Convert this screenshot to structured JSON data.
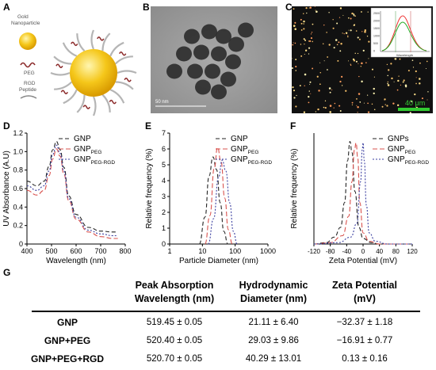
{
  "panel_labels": [
    "A",
    "B",
    "C",
    "D",
    "E",
    "F",
    "G"
  ],
  "panel_a": {
    "labels": {
      "gold": "Gold\nNanoparticle",
      "peg": "PEG",
      "rgd": "RGD\nPeptide"
    }
  },
  "panel_b": {
    "scale_bar": "50 nm"
  },
  "panel_c": {
    "scale_bar": "40 μm",
    "inset_xlabel": "Wavelength",
    "inset_yticks": [
      "0",
      "500",
      "1000",
      "1500",
      "2000",
      "2500"
    ]
  },
  "chart_data": [
    {
      "panel": "D",
      "type": "line",
      "xlabel": "Wavelength (nm)",
      "ylabel": "UV Absorbance (A.U)",
      "xlim": [
        400,
        800
      ],
      "ylim": [
        0,
        1.2
      ],
      "xticks": [
        "400",
        "500",
        "600",
        "700",
        "800"
      ],
      "yticks": [
        "0",
        "0.2",
        "0.4",
        "0.6",
        "0.8",
        "1.0",
        "1.2"
      ],
      "legend": [
        "GNP",
        "GNP|PEG",
        "GNP|PEG-RGD"
      ],
      "series": [
        {
          "name": "GNP",
          "color": "#222222",
          "dash": "5,3",
          "x": [
            400,
            440,
            470,
            490,
            505,
            520,
            535,
            550,
            570,
            600,
            650,
            700,
            750,
            770
          ],
          "y": [
            0.68,
            0.63,
            0.68,
            0.84,
            1.02,
            1.11,
            1.02,
            0.83,
            0.52,
            0.32,
            0.18,
            0.14,
            0.13,
            0.13
          ]
        },
        {
          "name": "GNP|PEG",
          "color": "#d9534f",
          "dash": "6,3",
          "x": [
            400,
            440,
            470,
            490,
            505,
            520,
            535,
            550,
            570,
            600,
            650,
            700,
            750,
            770
          ],
          "y": [
            0.58,
            0.53,
            0.58,
            0.74,
            0.92,
            1.03,
            0.95,
            0.76,
            0.47,
            0.27,
            0.13,
            0.08,
            0.06,
            0.06
          ]
        },
        {
          "name": "GNP|PEG-RGD",
          "color": "#3b3fa0",
          "dash": "2,2",
          "x": [
            400,
            440,
            470,
            490,
            505,
            520,
            535,
            550,
            570,
            600,
            650,
            700,
            750,
            770
          ],
          "y": [
            0.63,
            0.58,
            0.63,
            0.79,
            0.97,
            1.07,
            0.98,
            0.79,
            0.49,
            0.29,
            0.15,
            0.11,
            0.09,
            0.09
          ]
        }
      ]
    },
    {
      "panel": "E",
      "type": "line",
      "xlabel": "Particle Diameter (nm)",
      "ylabel": "Relative frequency (%)",
      "xscale": "log",
      "xlim": [
        1,
        1000
      ],
      "ylim": [
        0,
        7
      ],
      "xticks": [
        "1",
        "10",
        "100",
        "1000"
      ],
      "yticks": [
        "0",
        "1",
        "2",
        "3",
        "4",
        "5",
        "6",
        "7"
      ],
      "legend": [
        "GNP",
        "GNP|PEG",
        "GNP|PEG-RGD"
      ],
      "series": [
        {
          "name": "GNP",
          "color": "#222222",
          "dash": "5,3",
          "x": [
            8,
            12,
            16,
            21,
            27,
            35,
            45,
            60
          ],
          "y": [
            0,
            1.7,
            4.3,
            5.5,
            4.7,
            2.6,
            0.8,
            0
          ]
        },
        {
          "name": "GNP|PEG",
          "color": "#d9534f",
          "dash": "6,3",
          "x": [
            12,
            17,
            23,
            29,
            37,
            48,
            62,
            82
          ],
          "y": [
            0,
            1.8,
            4.8,
            6.1,
            5.2,
            2.9,
            0.9,
            0
          ]
        },
        {
          "name": "GNP|PEG-RGD",
          "color": "#3b3fa0",
          "dash": "2,2",
          "x": [
            15,
            22,
            31,
            40,
            52,
            68,
            88,
            115
          ],
          "y": [
            0,
            1.6,
            4.2,
            5.3,
            4.6,
            2.6,
            0.8,
            0
          ]
        }
      ]
    },
    {
      "panel": "F",
      "type": "line",
      "xlabel": "Zeta Potential (mV)",
      "ylabel": "Relative frequency (%)",
      "xlim": [
        -120,
        120
      ],
      "ylim": [
        0,
        0.8
      ],
      "xticks": [
        "-120",
        "-80",
        "-40",
        "0",
        "40",
        "80",
        "120"
      ],
      "legend": [
        "GNPs",
        "GNP|PEG",
        "GNP|PEG-RGD"
      ],
      "series": [
        {
          "name": "GNPs",
          "color": "#222222",
          "dash": "5,3",
          "x": [
            -120,
            -90,
            -70,
            -55,
            -45,
            -38,
            -32,
            -27,
            -20,
            -10,
            0,
            20,
            40,
            120
          ],
          "y": [
            0,
            0.01,
            0.05,
            0.12,
            0.3,
            0.6,
            0.74,
            0.66,
            0.38,
            0.12,
            0.04,
            0.01,
            0,
            0
          ]
        },
        {
          "name": "GNP|PEG",
          "color": "#d9534f",
          "dash": "6,3",
          "x": [
            -120,
            -80,
            -50,
            -35,
            -27,
            -21,
            -17,
            -13,
            -8,
            0,
            15,
            40,
            120
          ],
          "y": [
            0,
            0.01,
            0.06,
            0.2,
            0.45,
            0.68,
            0.73,
            0.62,
            0.3,
            0.08,
            0.02,
            0,
            0
          ]
        },
        {
          "name": "GNP|PEG-RGD",
          "color": "#3b3fa0",
          "dash": "2,2",
          "x": [
            -120,
            -60,
            -30,
            -15,
            -6,
            -2,
            0,
            3,
            8,
            15,
            30,
            60,
            120
          ],
          "y": [
            0,
            0.01,
            0.05,
            0.15,
            0.45,
            0.68,
            0.73,
            0.6,
            0.28,
            0.08,
            0.02,
            0,
            0
          ]
        }
      ]
    }
  ],
  "table": {
    "headers": [
      "Peak Absorption\nWavelength (nm)",
      "Hydrodynamic\nDiameter (nm)",
      "Zeta Potential\n(mV)"
    ],
    "rows": [
      {
        "label": "GNP",
        "values": [
          "519.45 ± 0.05",
          "21.11 ± 6.40",
          "−32.37 ± 1.18"
        ]
      },
      {
        "label": "GNP+PEG",
        "values": [
          "520.40 ± 0.05",
          "29.03 ± 9.86",
          "−16.91 ± 0.77"
        ]
      },
      {
        "label": "GNP+PEG+RGD",
        "values": [
          "520.70 ± 0.05",
          "40.29 ± 13.01",
          "0.13 ± 0.16"
        ]
      }
    ]
  },
  "colors": {
    "black": "#222222",
    "red": "#d9534f",
    "blue": "#3b3fa0",
    "scale_green": "#33cc33"
  }
}
